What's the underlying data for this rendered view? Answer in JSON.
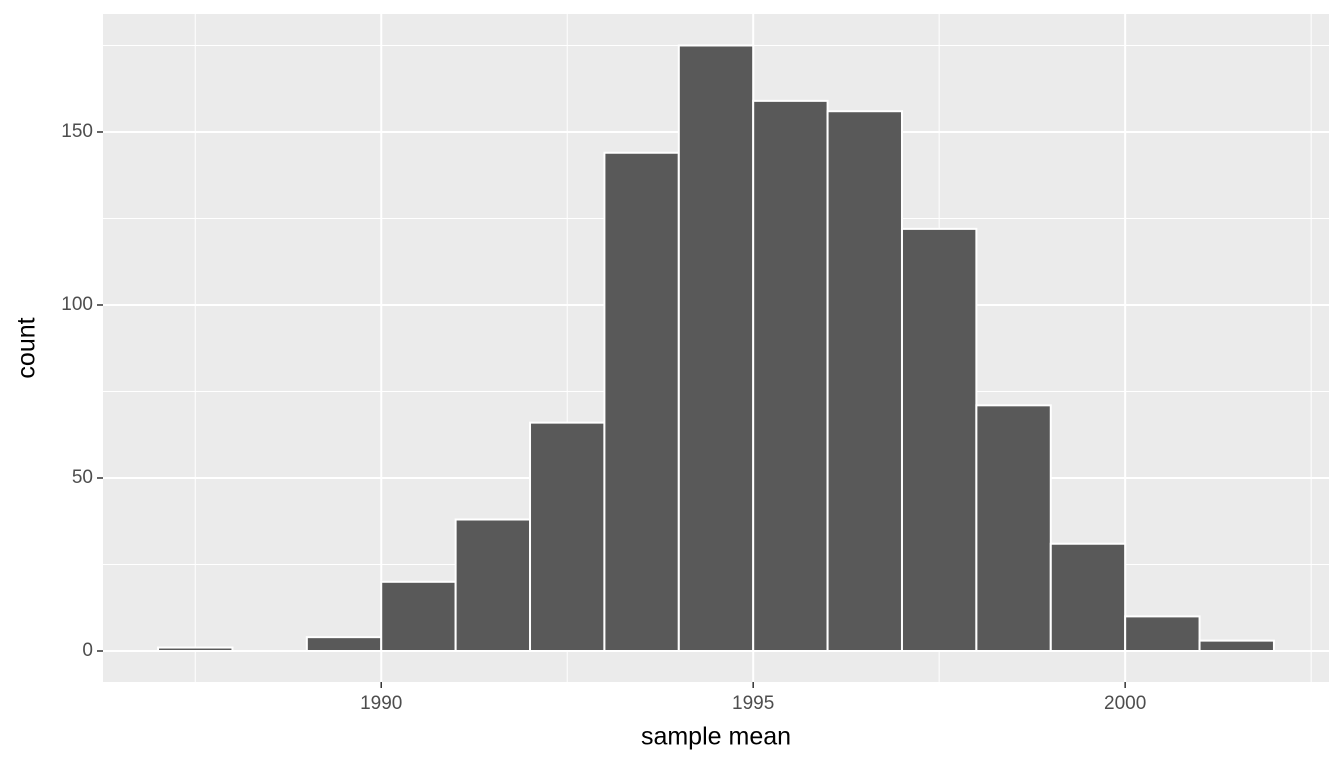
{
  "chart_data": {
    "type": "histogram",
    "x_label": "sample mean",
    "y_label": "count",
    "bins": [
      1987,
      1988,
      1989,
      1990,
      1991,
      1992,
      1993,
      1994,
      1995,
      1996,
      1997,
      1998,
      1999,
      2000,
      2001,
      2002
    ],
    "values": [
      1,
      0,
      4,
      20,
      38,
      66,
      144,
      175,
      159,
      156,
      122,
      71,
      31,
      10,
      3
    ],
    "color": "#595959",
    "edge_color": "#ffffff",
    "xlim": [
      1986.26,
      2002.74
    ],
    "ylim": [
      -8.96,
      184.1
    ],
    "xticks": [
      1990,
      1995,
      2000
    ],
    "yticks": [
      0,
      50,
      100,
      150
    ],
    "minor_xticks": [
      1987.5,
      1992.5,
      1997.5,
      2002.5
    ],
    "minor_yticks": [
      25,
      75,
      125,
      175
    ],
    "grid": true
  }
}
